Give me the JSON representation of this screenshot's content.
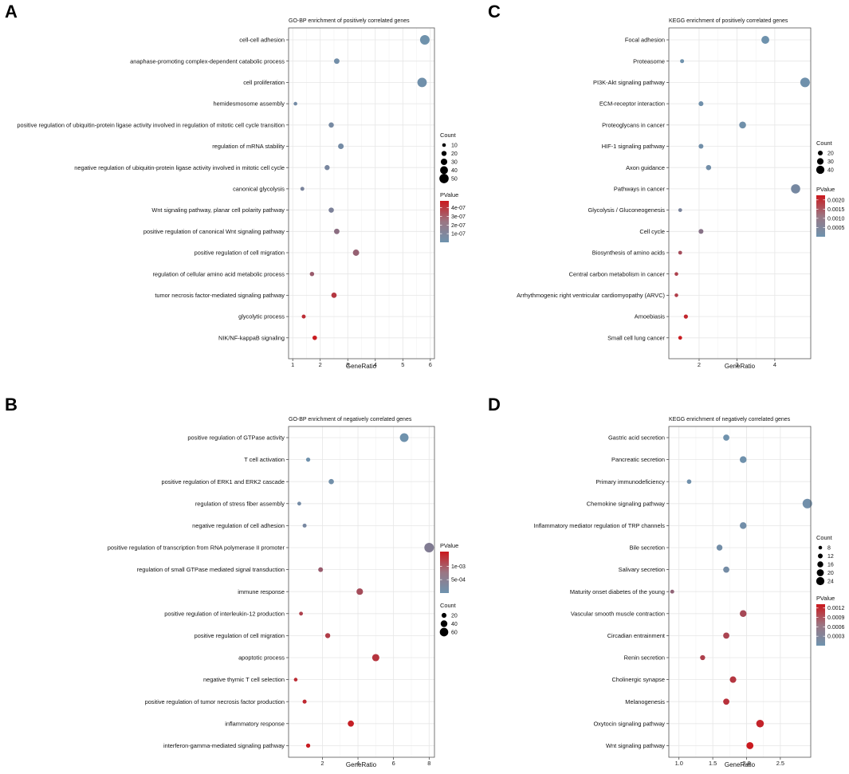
{
  "colors": {
    "low": "#6E93AE",
    "high": "#CB181D",
    "grid": "#E6E6E6",
    "border": "#555555"
  },
  "chart_data": [
    {
      "id": "A",
      "type": "scatter",
      "title": "GO-BP enrichment of positively correlated genes",
      "xlabel": "GeneRatio",
      "ylabel": "",
      "xlim": [
        0.85,
        6.15
      ],
      "xticks": [
        1,
        2,
        3,
        4,
        5,
        6
      ],
      "xtick_labels": [
        "1",
        "2",
        "3",
        "4",
        "5",
        "6"
      ],
      "terms": [
        "cell-cell adhesion",
        "anaphase-promoting complex-dependent catabolic process",
        "cell proliferation",
        "hemidesmosome assembly",
        "positive regulation of ubiquitin-protein ligase activity involved in regulation of mitotic cell cycle transition",
        "regulation of mRNA stability",
        "negative regulation of ubiquitin-protein ligase activity involved in mitotic cell cycle",
        "canonical glycolysis",
        "Wnt signaling pathway, planar cell polarity pathway",
        "positive regulation of canonical Wnt signaling pathway",
        "positive regulation of cell migration",
        "regulation of cellular amino acid metabolic process",
        "tumor necrosis factor-mediated signaling pathway",
        "glycolytic process",
        "NIK/NF-kappaB signaling"
      ],
      "gene_ratio": [
        5.8,
        2.6,
        5.7,
        1.1,
        2.4,
        2.75,
        2.25,
        1.35,
        2.4,
        2.6,
        3.3,
        1.7,
        2.5,
        1.4,
        1.8
      ],
      "count": [
        52,
        23,
        51,
        10,
        21,
        24,
        20,
        12,
        21,
        23,
        29,
        15,
        22,
        12,
        16
      ],
      "pvalue": [
        5e-09,
        2e-08,
        1e-08,
        3e-08,
        4e-08,
        3e-08,
        5e-08,
        6e-08,
        7e-08,
        1.5e-07,
        2e-07,
        2.2e-07,
        3.6e-07,
        4e-07,
        4.7e-07
      ],
      "size_legend": {
        "title": "Count",
        "values": [
          10,
          20,
          30,
          40,
          50
        ],
        "labels": [
          "10",
          "20",
          "30",
          "40",
          "50"
        ],
        "range": [
          10,
          52
        ]
      },
      "color_legend": {
        "title": "PValue",
        "range": [
          0,
          4.8e-07
        ],
        "ticks": [
          1e-07,
          2e-07,
          3e-07,
          4e-07
        ],
        "labels": [
          "1e-07",
          "2e-07",
          "3e-07",
          "4e-07"
        ]
      },
      "legend_order": [
        "size",
        "color"
      ]
    },
    {
      "id": "B",
      "type": "scatter",
      "title": "GO-BP enrichment of negatively correlated genes",
      "xlabel": "GeneRatio",
      "ylabel": "",
      "xlim": [
        0.1,
        8.3
      ],
      "xticks": [
        2,
        4,
        6,
        8
      ],
      "xtick_labels": [
        "2",
        "4",
        "6",
        "8"
      ],
      "terms": [
        "positive regulation of GTPase activity",
        "T cell activation",
        "positive regulation of ERK1 and ERK2 cascade",
        "regulation of stress fiber assembly",
        "negative regulation of cell adhesion",
        "positive regulation of transcription from RNA polymerase II promoter",
        "regulation of small GTPase mediated signal transduction",
        "immune response",
        "positive regulation of interleukin-12 production",
        "positive regulation of cell migration",
        "apoptotic process",
        "negative thymic T cell selection",
        "positive regulation of tumor necrosis factor production",
        "inflammatory response",
        "interferon-gamma-mediated signaling pathway"
      ],
      "gene_ratio": [
        6.6,
        1.2,
        2.5,
        0.7,
        1.0,
        8.0,
        1.9,
        4.1,
        0.8,
        2.3,
        5.0,
        0.5,
        1.0,
        3.6,
        1.2
      ],
      "count": [
        62,
        12,
        24,
        8,
        10,
        72,
        18,
        38,
        8,
        22,
        46,
        6,
        10,
        34,
        12
      ],
      "pvalue": [
        1e-05,
        2e-05,
        5e-05,
        0.0001,
        0.00015,
        0.0003,
        0.0007,
        0.0009,
        0.00105,
        0.0011,
        0.0012,
        0.0013,
        0.00135,
        0.00145,
        0.0015
      ],
      "size_legend": {
        "title": "Count",
        "values": [
          20,
          40,
          60
        ],
        "labels": [
          "20",
          "40",
          "60"
        ],
        "range": [
          6,
          72
        ]
      },
      "color_legend": {
        "title": "PValue",
        "range": [
          0,
          0.00155
        ],
        "ticks": [
          0.0005,
          0.001
        ],
        "labels": [
          "5e-04",
          "1e-03"
        ]
      },
      "legend_order": [
        "color",
        "size"
      ]
    },
    {
      "id": "C",
      "type": "scatter",
      "title": "KEGG enrichment of positively correlated genes",
      "xlabel": "GeneRatio",
      "ylabel": "",
      "xlim": [
        1.2,
        4.95
      ],
      "xticks": [
        2,
        3,
        4
      ],
      "xtick_labels": [
        "2",
        "3",
        "4"
      ],
      "terms": [
        "Focal adhesion",
        "Proteasome",
        "PI3K-Akt signaling pathway",
        "ECM-receptor interaction",
        "Proteoglycans in cancer",
        "HIF-1 signaling pathway",
        "Axon guidance",
        "Pathways in cancer",
        "Glycolysis / Gluconeogenesis",
        "Cell cycle",
        "Biosynthesis of amino acids",
        "Central carbon metabolism in cancer",
        "Arrhythmogenic right ventricular cardiomyopathy (ARVC)",
        "Amoebiasis",
        "Small cell lung cancer"
      ],
      "gene_ratio": [
        3.75,
        1.55,
        4.8,
        2.05,
        3.15,
        2.05,
        2.25,
        4.55,
        1.5,
        2.05,
        1.5,
        1.4,
        1.4,
        1.65,
        1.5
      ],
      "count": [
        38,
        15,
        48,
        20,
        32,
        20,
        22,
        46,
        14,
        20,
        14,
        13,
        13,
        16,
        14
      ],
      "pvalue": [
        1e-05,
        2e-05,
        3e-05,
        5e-05,
        6e-05,
        8e-05,
        0.0001,
        0.0002,
        0.0003,
        0.0006,
        0.0013,
        0.0015,
        0.0016,
        0.002,
        0.0022
      ],
      "size_legend": {
        "title": "Count",
        "values": [
          20,
          30,
          40
        ],
        "labels": [
          "20",
          "30",
          "40"
        ],
        "range": [
          13,
          48
        ]
      },
      "color_legend": {
        "title": "PValue",
        "range": [
          0,
          0.00225
        ],
        "ticks": [
          0.0005,
          0.001,
          0.0015,
          0.002
        ],
        "labels": [
          "0.0005",
          "0.0010",
          "0.0015",
          "0.0020"
        ]
      },
      "legend_order": [
        "size",
        "color"
      ]
    },
    {
      "id": "D",
      "type": "scatter",
      "title": "KEGG enrichment of negatively correlated genes",
      "xlabel": "GeneRatio",
      "ylabel": "",
      "xlim": [
        0.85,
        2.95
      ],
      "xticks": [
        1.0,
        1.5,
        2.0,
        2.5
      ],
      "xtick_labels": [
        "1.0",
        "1.5",
        "2.0",
        "2.5"
      ],
      "terms": [
        "Gastric acid secretion",
        "Pancreatic secretion",
        "Primary immunodeficiency",
        "Chemokine signaling pathway",
        "Inflammatory mediator regulation of TRP channels",
        "Bile secretion",
        "Salivary secretion",
        "Maturity onset diabetes of the young",
        "Vascular smooth muscle contraction",
        "Circadian entrainment",
        "Renin secretion",
        "Cholinergic synapse",
        "Melanogenesis",
        "Oxytocin signaling pathway",
        "Wnt signaling pathway"
      ],
      "gene_ratio": [
        1.7,
        1.95,
        1.15,
        2.9,
        1.95,
        1.6,
        1.7,
        0.9,
        1.95,
        1.7,
        1.35,
        1.8,
        1.7,
        2.2,
        2.05
      ],
      "count": [
        17,
        19,
        11,
        29,
        19,
        16,
        17,
        9,
        19,
        17,
        13,
        18,
        17,
        22,
        20
      ],
      "pvalue": [
        1e-05,
        2e-05,
        3e-05,
        4e-05,
        5e-05,
        6e-05,
        8e-05,
        0.0005,
        0.0008,
        0.00085,
        0.0009,
        0.001,
        0.00105,
        0.0012,
        0.0013
      ],
      "size_legend": {
        "title": "Count",
        "values": [
          8,
          12,
          16,
          20,
          24
        ],
        "labels": [
          "8",
          "12",
          "16",
          "20",
          "24"
        ],
        "range": [
          8,
          29
        ]
      },
      "color_legend": {
        "title": "PValue",
        "range": [
          0,
          0.00132
        ],
        "ticks": [
          0.0003,
          0.0006,
          0.0009,
          0.0012
        ],
        "labels": [
          "0.0003",
          "0.0006",
          "0.0009",
          "0.0012"
        ]
      },
      "legend_order": [
        "size",
        "color"
      ]
    }
  ]
}
